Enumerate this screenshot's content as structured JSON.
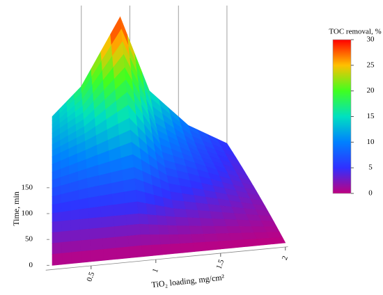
{
  "chart_data": {
    "type": "surface",
    "x_label": "TiO₂ loading, mg/cm²",
    "y_label": "Time, min",
    "colorbar_label": "TOC removal, %",
    "x": [
      0.2,
      0.5,
      0.9,
      1.2,
      1.6,
      2
    ],
    "y": [
      0,
      30,
      60,
      90,
      120,
      150
    ],
    "z": [
      [
        0,
        0,
        0,
        0,
        0,
        0
      ],
      [
        4,
        4,
        4,
        3,
        2,
        1
      ],
      [
        7,
        8,
        9,
        6,
        4,
        2
      ],
      [
        10,
        12,
        15,
        9,
        6,
        3
      ],
      [
        12,
        15,
        22,
        12,
        7,
        4
      ],
      [
        13,
        18,
        30,
        16,
        9,
        5
      ]
    ],
    "xticks": [
      0.5,
      1,
      1.5,
      2
    ],
    "ylim": [
      0,
      150
    ],
    "yticks": [
      0,
      50,
      100,
      150
    ],
    "zlim": [
      0,
      30
    ],
    "colorbar_ticks": [
      0,
      5,
      10,
      15,
      20,
      25,
      30
    ],
    "colormap": [
      "#c0007f",
      "#3030ff",
      "#0080ff",
      "#00e0c0",
      "#40ff20",
      "#ffc000",
      "#ff0000"
    ]
  }
}
